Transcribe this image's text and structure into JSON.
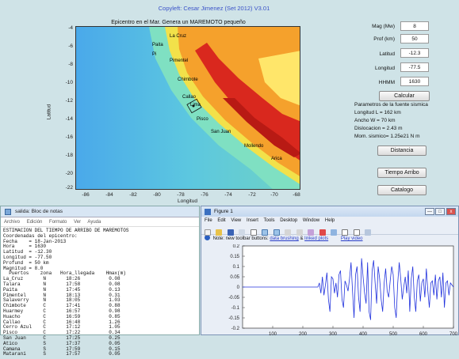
{
  "app": {
    "copyleft": "Copyleft: Cesar Jimenez (Set 2012) V3.01"
  },
  "map": {
    "title": "Epicentro en el Mar. Genera un MAREMOTO pequeño",
    "ylabel": "Latitud",
    "xlabel": "Longitud",
    "yticks": [
      "-4",
      "-6",
      "-8",
      "-10",
      "-12",
      "-14",
      "-16",
      "-18",
      "-20",
      "-22"
    ],
    "xticks": [
      "-86",
      "-84",
      "-82",
      "-80",
      "-78",
      "-76",
      "-74",
      "-72",
      "-70",
      "-68"
    ],
    "cities": [
      "La Cruz",
      "Paita",
      "Pi",
      "Pimentel",
      "Chimbote",
      "Callao",
      "Lima",
      "Pisco",
      "San Juan",
      "Mollendo",
      "Arica"
    ]
  },
  "params": {
    "mag_label": "Mag (Mw)",
    "mag_value": "8",
    "prof_label": "Prof (km)",
    "prof_value": "50",
    "lat_label": "Latitud",
    "lat_value": "-12.3",
    "lon_label": "Longitud",
    "lon_value": "-77.5",
    "hhmm_label": "HHMM",
    "hhmm_value": "1630"
  },
  "buttons": {
    "calcular": "Calcular",
    "distancia": "Distancia",
    "tiempo_arribo": "Tiempo Arribo",
    "catalogo": "Catalogo"
  },
  "results": {
    "heading": "Parametros de la fuente sismica",
    "longitud": "Longitud L   = 162 km",
    "ancho": "Ancho    W  = 70 km",
    "dislocacion": "Dislocacion = 2.43 m",
    "momento": "Mom. sismico= 1.25e21 N m"
  },
  "notepad": {
    "title": "salida: Bloc de notas",
    "menu": [
      "Archivo",
      "Edición",
      "Formato",
      "Ver",
      "Ayuda"
    ],
    "lines": [
      "ESTIMACION DEL TIEMPO DE ARRIBO DE MAREMOTOS",
      "Coordenadas del epicentro:",
      "Fecha    = 18-Jan-2013",
      "Hora     = 1630",
      "Latitud  = -12.30",
      "Longitud = -77.50",
      "Profund  = 50 km",
      "Magnitud = 8.0",
      "  Puertos    zona   Hora_llegada    Hmax(m)",
      "La_Cruz       N       18:26          0.08",
      "Talara        N       17:58          0.08",
      "Paita         N       17:45          0.13",
      "Pimentel      N       18:13          0.31",
      "Salaverry     N       18:05          1.03",
      "Chimbote      C       17:41          0.88",
      "Huarmey       C       16:57          0.98",
      "Huacho        C       16:59          0.85",
      "Callao        C       16:48          1.26",
      "Cerro Azul    C       17:12          1.05",
      "Pisco         C       17:22          0.34",
      "San Juan      C       17:25          0.25",
      "Atico         S       17:37          0.05",
      "Camana        S       17:59          0.15",
      "Matarani      S       17:57          0.05"
    ]
  },
  "figure1": {
    "title": "Figure 1",
    "menu": [
      "File",
      "Edit",
      "View",
      "Insert",
      "Tools",
      "Desktop",
      "Window",
      "Help"
    ],
    "note_text": "Note: new toolbar buttons:",
    "link1": "data brushing",
    "note_and": "&",
    "link2": "linked plots",
    "link3": "Play video",
    "btn_min": "—",
    "btn_max": "□",
    "btn_close": "x"
  },
  "chart_data": {
    "type": "line",
    "xlim": [
      0,
      700
    ],
    "ylim": [
      -0.2,
      0.2
    ],
    "xticks": [
      100,
      200,
      300,
      400,
      500,
      600,
      700
    ],
    "yticks": [
      -0.2,
      -0.15,
      -0.1,
      -0.05,
      0,
      0.05,
      0.1,
      0.15,
      0.2
    ],
    "ytick_labels": [
      "-0.2",
      "-0.15",
      "-0.1",
      "-0.05",
      "0",
      "0.05",
      "0.1",
      "0.15",
      "0.2"
    ],
    "series": [
      {
        "color": "#2233dd",
        "x": [
          0,
          100,
          250,
          255,
          260,
          265,
          270,
          275,
          280,
          285,
          290,
          295,
          300,
          305,
          310,
          315,
          320,
          325,
          330,
          335,
          340,
          345,
          350,
          355,
          360,
          365,
          370,
          375,
          380,
          385,
          390,
          395,
          400,
          405,
          410,
          415,
          420,
          425,
          430,
          435,
          440,
          445,
          450,
          455,
          460,
          465,
          470,
          475,
          480,
          485,
          490,
          495,
          500,
          505,
          510,
          515,
          520,
          525,
          530,
          535,
          540,
          545,
          550,
          555,
          560,
          565,
          570,
          575,
          580,
          585,
          590,
          595,
          600,
          605,
          610,
          615,
          620,
          625,
          630,
          635,
          640,
          645,
          650,
          655,
          660,
          665,
          670,
          675,
          680,
          685,
          690,
          695,
          700
        ],
        "y": [
          0,
          0,
          0,
          0.02,
          -0.03,
          0.05,
          -0.04,
          0.01,
          0.07,
          -0.06,
          -0.12,
          0.05,
          0.04,
          -0.03,
          0.02,
          -0.05,
          0.06,
          0.08,
          -0.06,
          -0.1,
          0.03,
          0.01,
          -0.02,
          0.04,
          0.12,
          -0.02,
          -0.15,
          0.06,
          0.1,
          -0.05,
          -0.12,
          0.14,
          0.05,
          -0.03,
          -0.08,
          0.12,
          -0.12,
          -0.16,
          0.08,
          0.13,
          0.02,
          -0.08,
          0.1,
          0.04,
          -0.06,
          -0.12,
          0.02,
          0.09,
          -0.02,
          -0.05,
          0.03,
          0.1,
          0.06,
          -0.1,
          -0.15,
          0.02,
          0.12,
          0.04,
          -0.06,
          0.0,
          0.05,
          -0.03,
          0.08,
          -0.12,
          0.04,
          0.1,
          -0.05,
          -0.12,
          0.03,
          0.06,
          -0.07,
          0.02,
          0.04,
          -0.05,
          0.09,
          -0.02,
          -0.1,
          0.02,
          0.03,
          -0.04,
          0.06,
          -0.06,
          0.03,
          0.05,
          -0.05,
          0.07,
          -0.1,
          0.02,
          0.03,
          -0.04,
          0.02,
          0.01,
          0.0
        ]
      }
    ]
  }
}
